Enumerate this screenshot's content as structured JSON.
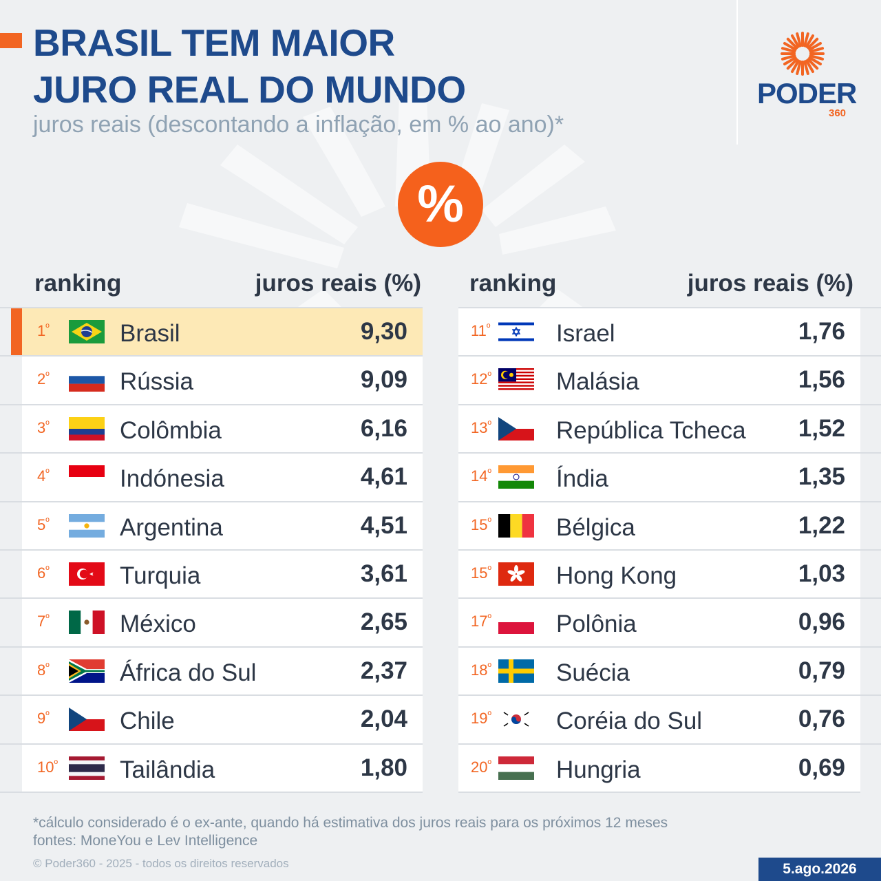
{
  "header": {
    "title_line1": "BRASIL TEM MAIOR",
    "title_line2": "JURO REAL DO MUNDO",
    "subtitle": "juros reais (descontando a inflação, em % ao ano)*"
  },
  "logo": {
    "word": "PODER",
    "number": "360"
  },
  "badge": {
    "symbol": "%"
  },
  "columns": {
    "ranking": "ranking",
    "value": "juros reais (%)"
  },
  "chart_data": {
    "type": "table",
    "title": "BRASIL TEM MAIOR JURO REAL DO MUNDO",
    "subtitle": "juros reais (descontando a inflação, em % ao ano)*",
    "columns": [
      "ranking",
      "juros reais (%)"
    ],
    "rows": [
      {
        "rank": "1",
        "country": "Brasil",
        "flag": "brazil",
        "value": "9,30",
        "highlight": true
      },
      {
        "rank": "2",
        "country": "Rússia",
        "flag": "russia",
        "value": "9,09"
      },
      {
        "rank": "3",
        "country": "Colômbia",
        "flag": "colombia",
        "value": "6,16"
      },
      {
        "rank": "4",
        "country": "Indónesia",
        "flag": "indonesia",
        "value": "4,61"
      },
      {
        "rank": "5",
        "country": "Argentina",
        "flag": "argentina",
        "value": "4,51"
      },
      {
        "rank": "6",
        "country": "Turquia",
        "flag": "turkey",
        "value": "3,61"
      },
      {
        "rank": "7",
        "country": "México",
        "flag": "mexico",
        "value": "2,65"
      },
      {
        "rank": "8",
        "country": "África do Sul",
        "flag": "south-africa",
        "value": "2,37"
      },
      {
        "rank": "9",
        "country": "Chile",
        "flag": "czech",
        "value": "2,04"
      },
      {
        "rank": "10",
        "country": "Tailândia",
        "flag": "thailand",
        "value": "1,80"
      },
      {
        "rank": "11",
        "country": "Israel",
        "flag": "israel",
        "value": "1,76"
      },
      {
        "rank": "12",
        "country": "Malásia",
        "flag": "malaysia",
        "value": "1,56"
      },
      {
        "rank": "13",
        "country": "República Tcheca",
        "flag": "czech",
        "value": "1,52"
      },
      {
        "rank": "14",
        "country": "Índia",
        "flag": "india",
        "value": "1,35"
      },
      {
        "rank": "15",
        "country": "Bélgica",
        "flag": "belgium",
        "value": "1,22"
      },
      {
        "rank": "15",
        "country": "Hong Kong",
        "flag": "hong-kong",
        "value": "1,03"
      },
      {
        "rank": "17",
        "country": "Polônia",
        "flag": "poland",
        "value": "0,96"
      },
      {
        "rank": "18",
        "country": "Suécia",
        "flag": "sweden",
        "value": "0,79"
      },
      {
        "rank": "19",
        "country": "Coréia do Sul",
        "flag": "south-korea",
        "value": "0,76"
      },
      {
        "rank": "20",
        "country": "Hungria",
        "flag": "hungary",
        "value": "0,69"
      }
    ]
  },
  "rank_suffix": "º",
  "footer": {
    "note": "*cálculo considerado é o ex-ante, quando há estimativa dos juros reais para os próximos 12 meses",
    "sources": "fontes: MoneYou e Lev Intelligence",
    "copyright": "© Poder360 - 2025 - todos os direitos reservados",
    "date": "5.ago.2026"
  },
  "colors": {
    "accent": "#f26522",
    "brand_blue": "#1e4a8c",
    "highlight": "#fde9b6"
  }
}
